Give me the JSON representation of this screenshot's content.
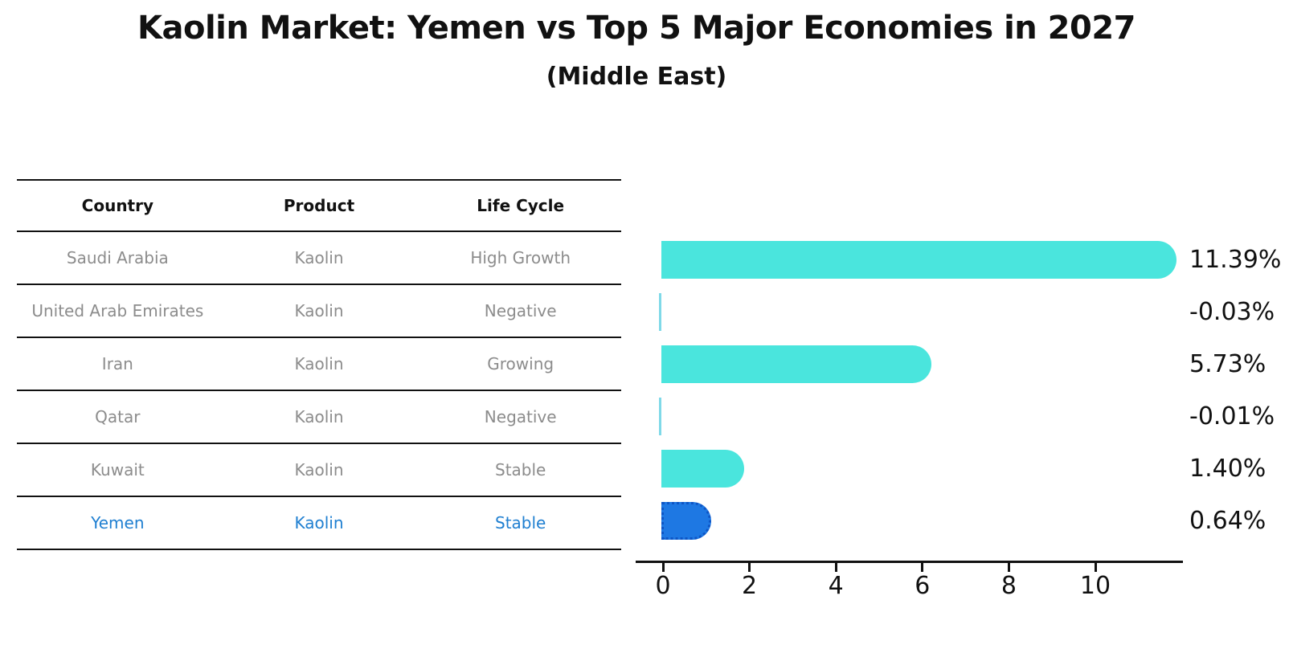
{
  "header": {
    "title": "Kaolin Market: Yemen vs Top 5 Major Economies in 2027",
    "subtitle": "(Middle East)"
  },
  "table": {
    "headers": [
      "Country",
      "Product",
      "Life Cycle"
    ],
    "rows": [
      {
        "country": "Saudi Arabia",
        "product": "Kaolin",
        "life_cycle": "High Growth",
        "highlight": false
      },
      {
        "country": "United Arab Emirates",
        "product": "Kaolin",
        "life_cycle": "Negative",
        "highlight": false
      },
      {
        "country": "Iran",
        "product": "Kaolin",
        "life_cycle": "Growing",
        "highlight": false
      },
      {
        "country": "Qatar",
        "product": "Kaolin",
        "life_cycle": "Negative",
        "highlight": false
      },
      {
        "country": "Kuwait",
        "product": "Kaolin",
        "life_cycle": "Stable",
        "highlight": false
      },
      {
        "country": "Yemen",
        "product": "Kaolin",
        "life_cycle": "Stable",
        "highlight": true
      }
    ]
  },
  "chart_data": {
    "type": "bar",
    "orientation": "horizontal",
    "title": "Kaolin Market: Yemen vs Top 5 Major Economies in 2027",
    "subtitle": "(Middle East)",
    "categories": [
      "Saudi Arabia",
      "United Arab Emirates",
      "Iran",
      "Qatar",
      "Kuwait",
      "Yemen"
    ],
    "values": [
      11.39,
      -0.03,
      5.73,
      -0.01,
      1.4,
      0.64
    ],
    "value_labels": [
      "11.39%",
      "-0.03%",
      "5.73%",
      "-0.01%",
      "1.40%",
      "0.64%"
    ],
    "xlabel": "",
    "ylabel": "",
    "xlim": [
      0,
      12
    ],
    "x_ticks": [
      0,
      2,
      4,
      6,
      8,
      10
    ],
    "grid": false,
    "legend_position": "none",
    "highlight_index": 5,
    "colors": {
      "bar_default": "#4ae5dd",
      "bar_highlight": "#1e78e3",
      "bar_highlight_border": "#0e55c5",
      "highlight_text": "#1f7fd1",
      "table_text": "#8c8c8c",
      "axis_text": "#111111"
    }
  }
}
